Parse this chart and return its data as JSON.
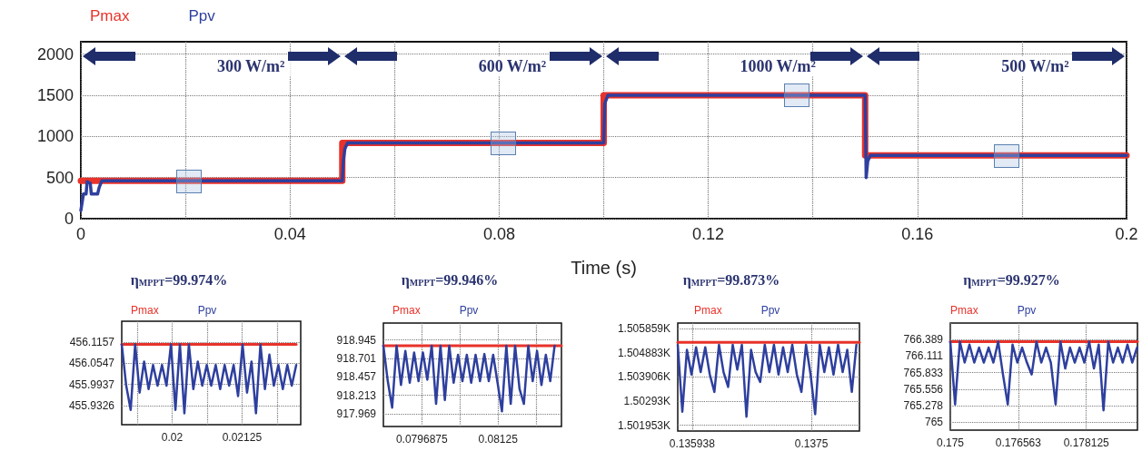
{
  "chart_data": [
    {
      "type": "line",
      "xlabel": "Time (s)",
      "xlim": [
        0,
        0.2
      ],
      "xticks": [
        0,
        {
          "value": 0.02,
          "label": null
        },
        0.04,
        {
          "value": 0.06,
          "label": null
        },
        0.08,
        {
          "value": 0.1,
          "label": null
        },
        0.12,
        {
          "value": 0.14,
          "label": null
        },
        0.16,
        {
          "value": 0.18,
          "label": null
        },
        0.2
      ],
      "ylim": [
        0,
        2150
      ],
      "yticks": [
        0,
        500,
        1000,
        1500,
        2000
      ],
      "grid": true,
      "legend": "top left",
      "line_style": "solid",
      "marker": "none",
      "annotations": [
        "300 W/m²",
        "600 W/m²",
        "1000 W/m²",
        "500 W/m²"
      ],
      "series": [
        {
          "name": "Pmax",
          "color": "#e8322a",
          "type": "step",
          "x": [
            0,
            0.05,
            0.1,
            0.15,
            0.2
          ],
          "values": [
            460,
            920,
            1500,
            770,
            770
          ]
        },
        {
          "name": "Ppv",
          "color": "#2e3f9e",
          "x": [
            0,
            0.0005,
            0.001,
            0.0012,
            0.0018,
            0.002,
            0.0032,
            0.0035,
            0.004,
            0.05,
            0.0502,
            0.0505,
            0.051,
            0.1,
            0.1002,
            0.1008,
            0.15,
            0.1502,
            0.1505,
            0.151,
            0.2
          ],
          "values": [
            100,
            300,
            300,
            450,
            430,
            300,
            300,
            380,
            460,
            460,
            700,
            850,
            920,
            920,
            1400,
            1500,
            1500,
            500,
            700,
            770,
            770
          ]
        }
      ]
    },
    {
      "type": "line",
      "title": "η$_{MPPT}$=99.974%",
      "xlim": [
        0.0191,
        0.0223
      ],
      "xticks": [
        {
          "value": 0.019375,
          "label": null
        },
        0.02,
        {
          "value": 0.020625,
          "label": null
        },
        0.02125,
        {
          "value": 0.021875,
          "label": null
        }
      ],
      "ylim": [
        455.877,
        456.177
      ],
      "yticks": [
        455.9326,
        455.9937,
        456.0547,
        456.1157
      ],
      "grid": true,
      "legend": "top left",
      "marker": "none",
      "series": [
        {
          "name": "Pmax",
          "color": "#e8322a",
          "x": [
            0.0191,
            0.02222
          ],
          "values": [
            456.11,
            456.11
          ]
        },
        {
          "name": "Ppv",
          "color": "#2e3f9e",
          "x": [
            0.0191,
            0.01918,
            0.01926,
            0.01934,
            0.01942,
            0.0195,
            0.01958,
            0.01966,
            0.01974,
            0.01982,
            0.0199,
            0.01998,
            0.02006,
            0.02014,
            0.02022,
            0.0203,
            0.02038,
            0.02046,
            0.02054,
            0.02062,
            0.0207,
            0.02078,
            0.02086,
            0.02094,
            0.02102,
            0.0211,
            0.02118,
            0.02126,
            0.02134,
            0.02142,
            0.0215,
            0.02158,
            0.02166,
            0.02174,
            0.02182,
            0.0219,
            0.02198,
            0.02206,
            0.02214,
            0.02222
          ],
          "values": [
            456.11,
            455.99,
            455.92,
            456.11,
            455.97,
            456.06,
            455.98,
            456.05,
            455.99,
            456.05,
            455.99,
            456.11,
            455.92,
            456.11,
            455.91,
            456.11,
            455.98,
            456.06,
            455.99,
            456.05,
            455.99,
            456.05,
            455.98,
            456.05,
            455.99,
            456.05,
            455.96,
            456.11,
            455.97,
            456.06,
            455.91,
            456.11,
            455.98,
            456.08,
            455.99,
            456.05,
            455.98,
            456.05,
            455.99,
            456.05
          ]
        }
      ]
    },
    {
      "type": "line",
      "title": "η$_{MPPT}$=99.946%",
      "xlim": [
        0.0789,
        0.08255
      ],
      "xticks": [
        0.0796875,
        {
          "value": 0.08046875,
          "label": null
        },
        0.08125,
        {
          "value": 0.08203125,
          "label": null
        }
      ],
      "ylim": [
        917.8,
        919.17
      ],
      "yticks": [
        917.969,
        918.213,
        918.457,
        918.701,
        918.945
      ],
      "grid": true,
      "legend": "top left",
      "marker": "none",
      "series": [
        {
          "name": "Pmax",
          "color": "#e8322a",
          "x": [
            0.0789,
            0.08255
          ],
          "values": [
            918.87,
            918.87
          ]
        },
        {
          "name": "Ppv",
          "color": "#2e3f9e",
          "x": [
            0.0789,
            0.07899,
            0.07908,
            0.07917,
            0.07926,
            0.07935,
            0.07944,
            0.07953,
            0.07962,
            0.07971,
            0.0798,
            0.07989,
            0.07998,
            0.08007,
            0.08016,
            0.08025,
            0.08034,
            0.08043,
            0.08052,
            0.08061,
            0.0807,
            0.08079,
            0.08088,
            0.08097,
            0.08106,
            0.08115,
            0.08124,
            0.08133,
            0.08142,
            0.08151,
            0.0816,
            0.08169,
            0.08178,
            0.08187,
            0.08196,
            0.08205,
            0.08214,
            0.08223,
            0.08232,
            0.08241
          ],
          "values": [
            918.87,
            918.4,
            918.05,
            918.87,
            918.35,
            918.8,
            918.38,
            918.78,
            918.4,
            918.78,
            918.42,
            918.87,
            918.1,
            918.87,
            918.15,
            918.87,
            918.38,
            918.75,
            918.4,
            918.75,
            918.38,
            918.75,
            918.4,
            918.76,
            918.4,
            918.75,
            918.38,
            918.0,
            918.87,
            918.1,
            918.87,
            918.3,
            918.1,
            918.87,
            918.4,
            918.8,
            918.35,
            918.75,
            918.4,
            918.87
          ]
        }
      ]
    },
    {
      "type": "line",
      "title": "η$_{MPPT}$=99.873%",
      "xlim": [
        0.13575,
        0.13813
      ],
      "xticks": [
        0.135938,
        0.1375
      ],
      "ylim": [
        1501.72,
        1506.08
      ],
      "yticks": [
        {
          "value": 1501.953,
          "label": "1.501953K"
        },
        {
          "value": 1502.93,
          "label": "1.50293K"
        },
        {
          "value": 1503.906,
          "label": "1.503906K"
        },
        {
          "value": 1504.883,
          "label": "1.504883K"
        },
        {
          "value": 1505.859,
          "label": "1.505859K"
        }
      ],
      "grid": true,
      "legend": "top left",
      "marker": "none",
      "series": [
        {
          "name": "Pmax",
          "color": "#e8322a",
          "x": [
            0.13575,
            0.13813
          ],
          "values": [
            1505.3,
            1505.3
          ]
        },
        {
          "name": "Ppv",
          "color": "#2e3f9e",
          "x": [
            0.13575,
            0.13581,
            0.13587,
            0.13593,
            0.13599,
            0.13605,
            0.13611,
            0.13617,
            0.13623,
            0.13629,
            0.13635,
            0.13641,
            0.13647,
            0.13653,
            0.13659,
            0.13665,
            0.13671,
            0.13677,
            0.13683,
            0.13689,
            0.13695,
            0.13701,
            0.13707,
            0.13713,
            0.13719,
            0.13725,
            0.13731,
            0.13737,
            0.13743,
            0.13749,
            0.13755,
            0.13761,
            0.13767,
            0.13773,
            0.13779,
            0.13785,
            0.13791,
            0.13797,
            0.13803,
            0.13809
          ],
          "values": [
            1505.2,
            1502.5,
            1505.0,
            1504.0,
            1505.1,
            1504.1,
            1505.1,
            1504.0,
            1503.3,
            1505.2,
            1504.1,
            1503.5,
            1505.2,
            1504.2,
            1505.2,
            1502.3,
            1505.0,
            1504.1,
            1503.7,
            1505.2,
            1504.1,
            1505.2,
            1504.0,
            1505.1,
            1504.1,
            1505.2,
            1504.0,
            1503.3,
            1505.2,
            1504.0,
            1502.4,
            1505.2,
            1504.1,
            1505.1,
            1504.0,
            1505.2,
            1504.1,
            1505.0,
            1503.3,
            1505.2
          ]
        }
      ]
    },
    {
      "type": "line",
      "title": "η$_{MPPT}$=99.927%",
      "xlim": [
        0.175,
        0.1793
      ],
      "xticks": [
        0.175,
        0.176563,
        0.178125
      ],
      "ylim": [
        764.87,
        766.66
      ],
      "yticks": [
        765,
        765.278,
        765.556,
        765.833,
        766.111,
        766.389
      ],
      "grid": true,
      "legend": "top left",
      "marker": "none",
      "series": [
        {
          "name": "Pmax",
          "color": "#e8322a",
          "x": [
            0.175,
            0.1793
          ],
          "values": [
            766.35,
            766.35
          ]
        },
        {
          "name": "Ppv",
          "color": "#2e3f9e",
          "x": [
            0.175,
            0.17511,
            0.17522,
            0.17533,
            0.17544,
            0.17555,
            0.17566,
            0.17577,
            0.17588,
            0.17599,
            0.1761,
            0.17621,
            0.17632,
            0.17643,
            0.17654,
            0.17665,
            0.17676,
            0.17687,
            0.17698,
            0.17709,
            0.1772,
            0.17731,
            0.17742,
            0.17753,
            0.17764,
            0.17775,
            0.17786,
            0.17797,
            0.17808,
            0.17819,
            0.1783,
            0.17841,
            0.17852,
            0.17863,
            0.17874,
            0.17885,
            0.17896,
            0.17907,
            0.17918,
            0.17929
          ],
          "values": [
            766.35,
            765.3,
            766.35,
            766.0,
            766.3,
            766.0,
            766.25,
            766.0,
            766.25,
            766.0,
            766.35,
            765.8,
            765.3,
            766.3,
            766.0,
            766.25,
            766.0,
            765.8,
            766.35,
            766.0,
            766.25,
            766.0,
            765.3,
            766.35,
            765.9,
            766.25,
            766.0,
            766.25,
            766.0,
            766.35,
            765.9,
            766.3,
            765.2,
            766.35,
            766.0,
            766.25,
            766.0,
            766.3,
            766.0,
            766.25
          ]
        }
      ]
    }
  ]
}
